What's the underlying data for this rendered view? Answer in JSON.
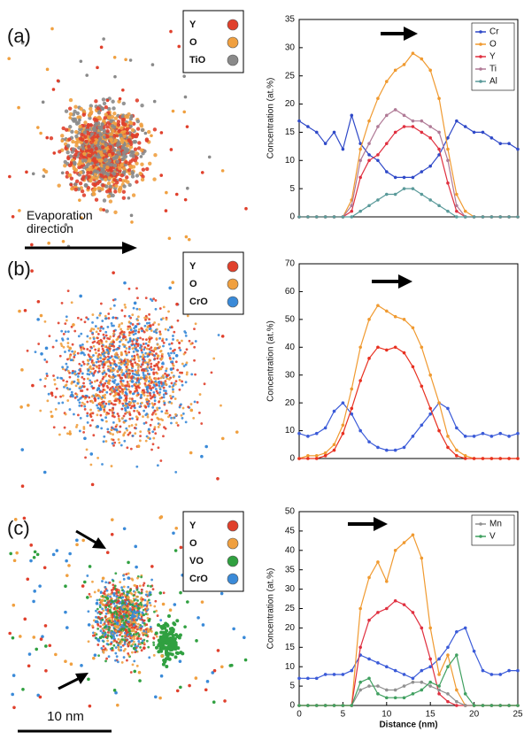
{
  "atom_maps": [
    {
      "label": "(a)",
      "legend": [
        {
          "label": "Y",
          "color": "#e0402c"
        },
        {
          "label": "O",
          "color": "#f0a040"
        },
        {
          "label": "TiO",
          "color": "#8a8a8a"
        }
      ]
    },
    {
      "label": "(b)",
      "legend": [
        {
          "label": "Y",
          "color": "#e0402c"
        },
        {
          "label": "O",
          "color": "#f0a040"
        },
        {
          "label": "CrO",
          "color": "#3a8ad8"
        }
      ]
    },
    {
      "label": "(c)",
      "legend": [
        {
          "label": "Y",
          "color": "#e0402c"
        },
        {
          "label": "O",
          "color": "#f0a040"
        },
        {
          "label": "VO",
          "color": "#30a040"
        },
        {
          "label": "CrO",
          "color": "#3a8ad8"
        }
      ]
    }
  ],
  "evaporation_label": "Evaporation direction",
  "scale_bar_label": "10 nm",
  "chart_data": [
    {
      "type": "line",
      "y_label": "Concentration (at.%)",
      "x": [
        0,
        1,
        2,
        3,
        4,
        5,
        6,
        7,
        8,
        9,
        10,
        11,
        12,
        13,
        14,
        15,
        16,
        17,
        18,
        19,
        20,
        21,
        22,
        23,
        24,
        25
      ],
      "xlim": [
        0,
        25
      ],
      "ylim": [
        0,
        35
      ],
      "yticks": [
        0,
        5,
        10,
        15,
        20,
        25,
        30,
        35
      ],
      "legend": "upper right",
      "series": [
        {
          "name": "Cr",
          "color": "#2f49c8",
          "values": [
            17,
            16,
            15,
            13,
            15,
            12,
            18,
            13,
            11,
            10,
            8,
            7,
            7,
            7,
            8,
            9,
            11,
            14,
            17,
            16,
            15,
            15,
            14,
            13,
            13,
            12
          ]
        },
        {
          "name": "O",
          "color": "#f09a30",
          "values": [
            0,
            0,
            0,
            0,
            0,
            0,
            3,
            12,
            17,
            21,
            24,
            26,
            27,
            29,
            28,
            26,
            21,
            12,
            4,
            1,
            0,
            0,
            0,
            0,
            0,
            0
          ]
        },
        {
          "name": "Y",
          "color": "#e03040",
          "values": [
            0,
            0,
            0,
            0,
            0,
            0,
            1,
            7,
            10,
            11,
            13,
            15,
            16,
            16,
            15,
            14,
            12,
            6,
            1,
            0,
            0,
            0,
            0,
            0,
            0,
            0
          ]
        },
        {
          "name": "Ti",
          "color": "#b07a96",
          "values": [
            0,
            0,
            0,
            0,
            0,
            0,
            2,
            10,
            13,
            16,
            18,
            19,
            18,
            17,
            17,
            16,
            15,
            10,
            2,
            0,
            0,
            0,
            0,
            0,
            0,
            0
          ]
        },
        {
          "name": "Al",
          "color": "#5a9a9a",
          "values": [
            0,
            0,
            0,
            0,
            0,
            0,
            0,
            1,
            2,
            3,
            4,
            4,
            5,
            5,
            4,
            3,
            2,
            1,
            0,
            0,
            0,
            0,
            0,
            0,
            0,
            0
          ]
        }
      ]
    },
    {
      "type": "line",
      "y_label": "Concentration (at.%)",
      "x": [
        0,
        1,
        2,
        3,
        4,
        5,
        6,
        7,
        8,
        9,
        10,
        11,
        12,
        13,
        14,
        15,
        16,
        17,
        18,
        19,
        20,
        21,
        22,
        23,
        24,
        25
      ],
      "xlim": [
        0,
        25
      ],
      "ylim": [
        0,
        70
      ],
      "yticks": [
        0,
        10,
        20,
        30,
        40,
        50,
        60,
        70
      ],
      "series": [
        {
          "color": "#3a5ad8",
          "values": [
            9,
            8,
            9,
            11,
            17,
            20,
            16,
            10,
            6,
            4,
            3,
            3,
            4,
            8,
            12,
            16,
            20,
            18,
            11,
            8,
            8,
            9,
            8,
            9,
            8,
            9
          ]
        },
        {
          "color": "#f09a30",
          "values": [
            0,
            1,
            1,
            2,
            5,
            12,
            25,
            40,
            50,
            55,
            53,
            51,
            50,
            47,
            40,
            30,
            20,
            8,
            3,
            1,
            0,
            0,
            0,
            0,
            0,
            0
          ]
        },
        {
          "color": "#e83020",
          "values": [
            0,
            0,
            0,
            1,
            3,
            9,
            18,
            28,
            36,
            40,
            39,
            40,
            38,
            33,
            26,
            18,
            10,
            4,
            1,
            0,
            0,
            0,
            0,
            0,
            0,
            0
          ]
        }
      ]
    },
    {
      "type": "line",
      "y_label": "Concentration (at.%)",
      "x_label": "Distance (nm)",
      "x": [
        0,
        1,
        2,
        3,
        4,
        5,
        6,
        7,
        8,
        9,
        10,
        11,
        12,
        13,
        14,
        15,
        16,
        17,
        18,
        19,
        20,
        21,
        22,
        23,
        24,
        25
      ],
      "xlim": [
        0,
        25
      ],
      "xticks": [
        0,
        5,
        10,
        15,
        20,
        25
      ],
      "ylim": [
        0,
        50
      ],
      "yticks": [
        0,
        5,
        10,
        15,
        20,
        25,
        30,
        35,
        40,
        45,
        50
      ],
      "legend": "upper right",
      "series": [
        {
          "color": "#3a5ad8",
          "values": [
            7,
            7,
            7,
            8,
            8,
            8,
            9,
            13,
            12,
            11,
            10,
            9,
            8,
            7,
            9,
            10,
            12,
            15,
            19,
            20,
            14,
            9,
            8,
            8,
            9,
            9
          ]
        },
        {
          "color": "#f09a30",
          "values": [
            0,
            0,
            0,
            0,
            0,
            0,
            0,
            25,
            33,
            37,
            32,
            40,
            42,
            44,
            38,
            20,
            8,
            13,
            4,
            0,
            0,
            0,
            0,
            0,
            0,
            0
          ]
        },
        {
          "color": "#e03040",
          "values": [
            0,
            0,
            0,
            0,
            0,
            0,
            0,
            15,
            22,
            24,
            25,
            27,
            26,
            24,
            20,
            12,
            3,
            1,
            0,
            0,
            0,
            0,
            0,
            0,
            0,
            0
          ]
        },
        {
          "name": "Mn",
          "color": "#909090",
          "values": [
            0,
            0,
            0,
            0,
            0,
            0,
            0,
            4,
            5,
            5,
            4,
            4,
            5,
            6,
            6,
            5,
            4,
            3,
            1,
            0,
            0,
            0,
            0,
            0,
            0,
            0
          ]
        },
        {
          "name": "V",
          "color": "#40a060",
          "values": [
            0,
            0,
            0,
            0,
            0,
            0,
            0,
            6,
            7,
            3,
            2,
            2,
            2,
            3,
            4,
            6,
            5,
            10,
            13,
            3,
            0,
            0,
            0,
            0,
            0,
            0
          ]
        }
      ]
    }
  ]
}
